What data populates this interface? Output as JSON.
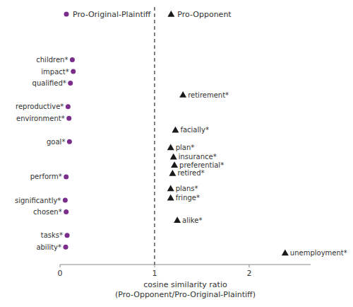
{
  "chart_data": {
    "type": "scatter",
    "xlabel": "cosine similarity ratio\n(Pro-Opponent/Pro-Original-Plaintiff)",
    "xlim": [
      0,
      2.65
    ],
    "xticks": [
      0,
      1,
      2
    ],
    "ylim": [
      0.5,
      22.5
    ],
    "tick_labels": "x",
    "grid": false,
    "legend": "top",
    "vlines": [
      {
        "x": 1.0,
        "line_style": "dashed"
      }
    ],
    "series": [
      {
        "name": "Pro-Original-Plaintiff",
        "color": "#7B2D8B",
        "marker": "circle",
        "labels": [
          "children*",
          "impact*",
          "qualified*",
          "reproductive*",
          "environment*",
          "goal*",
          "perform*",
          "significantly*",
          "chosen*",
          "tasks*",
          "ability*"
        ],
        "x": [
          0.13,
          0.14,
          0.11,
          0.085,
          0.095,
          0.1,
          0.065,
          0.055,
          0.065,
          0.075,
          0.06
        ],
        "values": [
          18,
          17,
          16,
          14,
          13,
          11,
          8,
          6,
          5,
          3,
          2
        ]
      },
      {
        "name": "Pro-Opponent",
        "color": "#1a1a1a",
        "marker": "triangle",
        "labels": [
          "retirement*",
          "facially*",
          "plan*",
          "insurance*",
          "preferential*",
          "retired*",
          "plans*",
          "fringe*",
          "alike*",
          "unemployment*"
        ],
        "x": [
          1.3,
          1.22,
          1.17,
          1.2,
          1.21,
          1.19,
          1.17,
          1.17,
          1.24,
          2.38
        ],
        "values": [
          15,
          12,
          10.5,
          9.7,
          9.0,
          8.3,
          7.0,
          6.2,
          4.3,
          1.5
        ]
      }
    ]
  }
}
